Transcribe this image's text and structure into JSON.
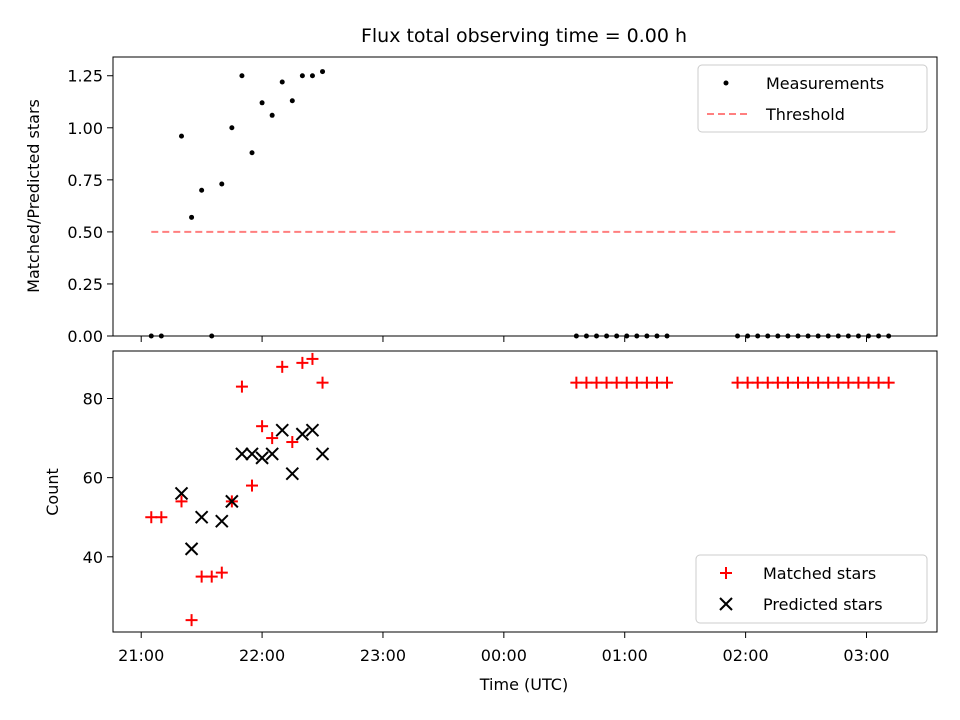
{
  "chart_data": [
    {
      "type": "scatter",
      "title": "Flux total observing time = 0.00 h",
      "xlabel": "",
      "ylabel": "Matched/Predicted stars",
      "ylim": [
        0,
        1.34
      ],
      "yticks": [
        "0.00",
        "0.25",
        "0.50",
        "0.75",
        "1.00",
        "1.25"
      ],
      "legend": "top-right",
      "series": [
        {
          "name": "Measurements",
          "marker": "dot",
          "color": "#000000",
          "x": [
            "21:05",
            "21:10",
            "21:20",
            "21:25",
            "21:30",
            "21:35",
            "21:40",
            "21:45",
            "21:50",
            "21:55",
            "22:00",
            "22:05",
            "22:10",
            "22:15",
            "22:20",
            "22:25",
            "22:30",
            "00:36",
            "00:41",
            "00:46",
            "00:51",
            "00:56",
            "01:01",
            "01:06",
            "01:11",
            "01:16",
            "01:21",
            "01:56",
            "02:01",
            "02:06",
            "02:11",
            "02:16",
            "02:21",
            "02:26",
            "02:31",
            "02:36",
            "02:41",
            "02:46",
            "02:51",
            "02:56",
            "03:01",
            "03:06",
            "03:11"
          ],
          "y": [
            0.0,
            0.0,
            0.96,
            0.57,
            0.7,
            0.0,
            0.73,
            1.0,
            1.25,
            0.88,
            1.12,
            1.06,
            1.22,
            1.13,
            1.25,
            1.25,
            1.27,
            0,
            0,
            0,
            0,
            0,
            0,
            0,
            0,
            0,
            0,
            0,
            0,
            0,
            0,
            0,
            0,
            0,
            0,
            0,
            0,
            0,
            0,
            0,
            0,
            0,
            0
          ]
        },
        {
          "name": "Threshold",
          "marker": "dashed-line",
          "color": "#ff7f7f",
          "x": [
            "21:05",
            "03:15"
          ],
          "y": [
            0.5,
            0.5
          ]
        }
      ]
    },
    {
      "type": "scatter",
      "title": "",
      "xlabel": "Time (UTC)",
      "ylabel": "Count",
      "ylim": [
        21,
        92
      ],
      "yticks": [
        "40",
        "60",
        "80"
      ],
      "xticks": [
        "21:00",
        "22:00",
        "23:00",
        "00:00",
        "01:00",
        "02:00",
        "03:00"
      ],
      "legend": "bottom-right",
      "series": [
        {
          "name": "Matched stars",
          "marker": "plus",
          "color": "#ff0000",
          "x": [
            "21:05",
            "21:10",
            "21:20",
            "21:25",
            "21:30",
            "21:35",
            "21:40",
            "21:45",
            "21:50",
            "21:55",
            "22:00",
            "22:05",
            "22:10",
            "22:15",
            "22:20",
            "22:25",
            "22:30",
            "00:36",
            "00:41",
            "00:46",
            "00:51",
            "00:56",
            "01:01",
            "01:06",
            "01:11",
            "01:16",
            "01:21",
            "01:56",
            "02:01",
            "02:06",
            "02:11",
            "02:16",
            "02:21",
            "02:26",
            "02:31",
            "02:36",
            "02:41",
            "02:46",
            "02:51",
            "02:56",
            "03:01",
            "03:06",
            "03:11"
          ],
          "y": [
            50,
            50,
            54,
            24,
            35,
            35,
            36,
            54,
            83,
            58,
            73,
            70,
            88,
            69,
            89,
            90,
            84,
            84,
            84,
            84,
            84,
            84,
            84,
            84,
            84,
            84,
            84,
            84,
            84,
            84,
            84,
            84,
            84,
            84,
            84,
            84,
            84,
            84,
            84,
            84,
            84,
            84,
            84
          ]
        },
        {
          "name": "Predicted stars",
          "marker": "x",
          "color": "#000000",
          "x": [
            "21:20",
            "21:25",
            "21:30",
            "21:40",
            "21:45",
            "21:50",
            "21:55",
            "22:00",
            "22:05",
            "22:10",
            "22:15",
            "22:20",
            "22:25",
            "22:30"
          ],
          "y": [
            56,
            42,
            50,
            49,
            54,
            66,
            66,
            65,
            66,
            72,
            61,
            71,
            72,
            66
          ]
        }
      ]
    }
  ]
}
